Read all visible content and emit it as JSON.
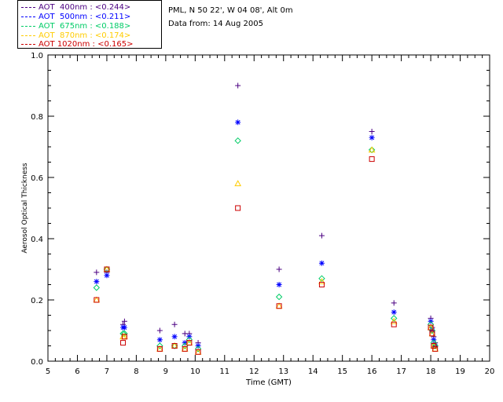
{
  "info": {
    "location": "PML, N 50 22', W 04 08', Alt 0m",
    "date": "Data from: 14 Aug 2005"
  },
  "chart_data": {
    "type": "scatter",
    "xlabel": "Time (GMT)",
    "ylabel": "Aerosol Optical Thickness",
    "xlim": [
      5,
      20
    ],
    "ylim": [
      0.0,
      1.0
    ],
    "xticks": [
      "5",
      "6",
      "7",
      "8",
      "9",
      "10",
      "11",
      "12",
      "13",
      "14",
      "15",
      "16",
      "17",
      "18",
      "19",
      "20"
    ],
    "yticks": [
      "0.0",
      "0.2",
      "0.4",
      "0.6",
      "0.8",
      "1.0"
    ],
    "x": [
      6.65,
      7.0,
      7.55,
      7.6,
      8.8,
      9.3,
      9.65,
      9.8,
      10.1,
      11.45,
      12.85,
      14.3,
      16.0,
      16.75,
      18.0,
      18.05,
      18.1,
      18.15
    ],
    "series": [
      {
        "name": "AOT  400nm : <0.244>",
        "color": "#4b0082",
        "marker": "plus",
        "values": [
          0.29,
          0.29,
          0.12,
          0.13,
          0.1,
          0.12,
          0.09,
          0.09,
          0.06,
          0.9,
          0.3,
          0.41,
          0.75,
          0.19,
          0.14,
          0.11,
          0.08,
          0.06
        ]
      },
      {
        "name": "AOT  500nm : <0.211>",
        "color": "#0000ff",
        "marker": "asterisk",
        "values": [
          0.26,
          0.28,
          0.11,
          0.11,
          0.07,
          0.08,
          0.06,
          0.08,
          0.05,
          0.78,
          0.25,
          0.32,
          0.73,
          0.16,
          0.13,
          0.1,
          0.07,
          0.05
        ]
      },
      {
        "name": "AOT  675nm : <0.188>",
        "color": "#00cc66",
        "marker": "diamond",
        "values": [
          0.24,
          0.3,
          0.09,
          0.09,
          0.05,
          0.05,
          0.05,
          0.07,
          0.04,
          0.72,
          0.21,
          0.27,
          0.69,
          0.14,
          0.12,
          0.1,
          0.06,
          0.05
        ]
      },
      {
        "name": "AOT  870nm : <0.174>",
        "color": "#ffcc00",
        "marker": "triangle",
        "values": [
          0.2,
          0.3,
          0.08,
          0.08,
          0.04,
          0.05,
          0.04,
          0.06,
          0.03,
          0.58,
          0.18,
          0.26,
          0.69,
          0.13,
          0.11,
          0.09,
          0.05,
          0.04
        ]
      },
      {
        "name": "AOT 1020nm : <0.165>",
        "color": "#cc0000",
        "marker": "square",
        "values": [
          0.2,
          0.3,
          0.06,
          0.08,
          0.04,
          0.05,
          0.04,
          0.06,
          0.03,
          0.5,
          0.18,
          0.25,
          0.66,
          0.12,
          0.11,
          0.09,
          0.05,
          0.04
        ]
      }
    ]
  }
}
